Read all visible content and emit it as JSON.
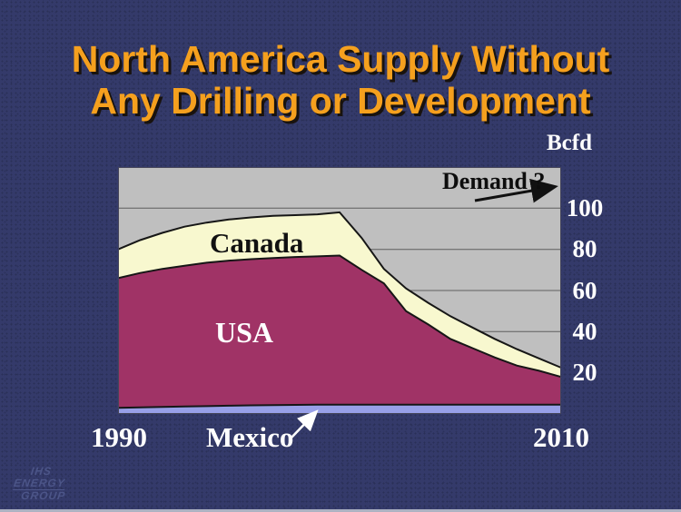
{
  "title": {
    "line1": "North America Supply Without",
    "line2": "Any Drilling or Development"
  },
  "colors": {
    "slide_background": "#343a6a",
    "title_text": "#F5A01E",
    "axis_text": "#ffffff",
    "annotation_dark_text": "#0d0d0d",
    "logo_text": "#4c5588"
  },
  "logo": {
    "line1": "IHS",
    "line2": "ENERGY",
    "line3": "GROUP"
  },
  "chart_data": {
    "type": "area",
    "stacked": true,
    "title": "",
    "xlabel": "",
    "ylabel": "Bcfd",
    "ylim": [
      0,
      120
    ],
    "yticks": [
      100,
      80,
      60,
      40,
      20
    ],
    "xtick_labels": [
      "1990",
      "2010"
    ],
    "gridlines": true,
    "legend_position": "labels-on-areas",
    "plot_bg": "#BFBFBF",
    "grid_color": "#5f5f5f",
    "outline_color": "#161616",
    "x": [
      1990,
      1991,
      1992,
      1993,
      1994,
      1995,
      1996,
      1997,
      1998,
      1999,
      2000,
      2001,
      2002,
      2003,
      2004,
      2005,
      2006,
      2007,
      2008,
      2009,
      2010
    ],
    "series": [
      {
        "name": "Mexico",
        "color": "#98A0E8",
        "values": [
          3.0,
          3.2,
          3.4,
          3.6,
          3.8,
          4.0,
          4.2,
          4.3,
          4.4,
          4.5,
          4.5,
          4.5,
          4.5,
          4.5,
          4.5,
          4.5,
          4.5,
          4.5,
          4.5,
          4.5,
          4.5
        ]
      },
      {
        "name": "USA",
        "color": "#A03366",
        "values": [
          63.0,
          65.3,
          67.1,
          68.4,
          69.7,
          70.5,
          71.0,
          71.5,
          71.9,
          72.1,
          72.5,
          65.5,
          59.0,
          45.5,
          39.0,
          32.0,
          27.5,
          23.0,
          19.0,
          16.5,
          13.5
        ]
      },
      {
        "name": "Canada",
        "color": "#F8F8CF",
        "values": [
          14.0,
          16.0,
          17.5,
          19.0,
          19.5,
          20.0,
          20.3,
          20.5,
          20.3,
          20.4,
          21.0,
          15.5,
          7.0,
          11.0,
          10.5,
          11.0,
          10.0,
          9.0,
          8.0,
          6.0,
          4.5
        ]
      }
    ],
    "annotations": {
      "demand_label": "Demand ?",
      "canada_label": "Canada",
      "usa_label": "USA",
      "mexico_label": "Mexico",
      "unit_label": "Bcfd"
    }
  }
}
